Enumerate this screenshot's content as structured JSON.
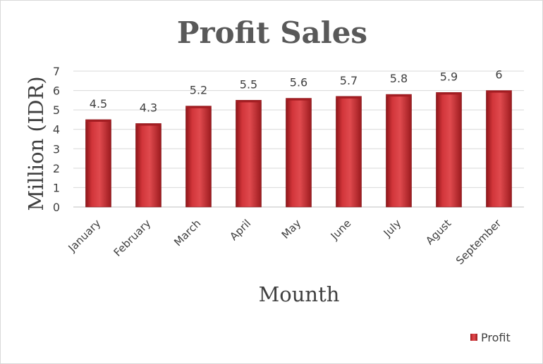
{
  "chart_data": {
    "type": "bar",
    "title": "Profit Sales",
    "xlabel": "Mounth",
    "ylabel": "Million (IDR)",
    "categories": [
      "January",
      "February",
      "March",
      "April",
      "May",
      "June",
      "July",
      "Agust",
      "September"
    ],
    "series": [
      {
        "name": "Profit",
        "values": [
          4.5,
          4.3,
          5.2,
          5.5,
          5.6,
          5.7,
          5.8,
          5.9,
          6
        ]
      }
    ],
    "ylim": [
      0,
      7
    ],
    "yticks": [
      0,
      1,
      2,
      3,
      4,
      5,
      6,
      7
    ],
    "grid": true,
    "legend_position": "bottom-right",
    "bar_color": "#c0272d",
    "data_labels": true
  }
}
